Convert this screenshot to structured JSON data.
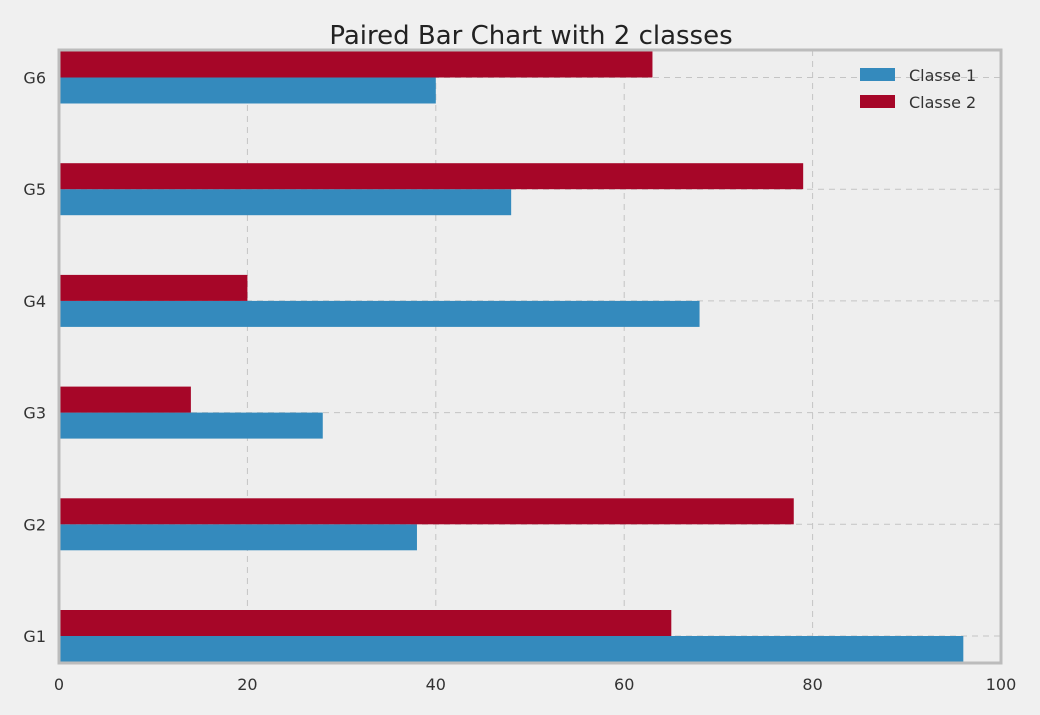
{
  "chart_data": {
    "type": "bar",
    "orientation": "horizontal",
    "title": "Paired Bar Chart with 2 classes",
    "xlabel": "",
    "ylabel": "",
    "categories": [
      "G1",
      "G2",
      "G3",
      "G4",
      "G5",
      "G6"
    ],
    "series": [
      {
        "name": "Classe 1",
        "color": "#348abd",
        "values": [
          96,
          38,
          28,
          68,
          48,
          40
        ]
      },
      {
        "name": "Classe 2",
        "color": "#a60628",
        "values": [
          65,
          78,
          14,
          20,
          79,
          63
        ]
      }
    ],
    "xlim": [
      0,
      100
    ],
    "xticks": [
      0,
      20,
      40,
      60,
      80,
      100
    ],
    "grid": true,
    "legend_position": "top-right"
  }
}
